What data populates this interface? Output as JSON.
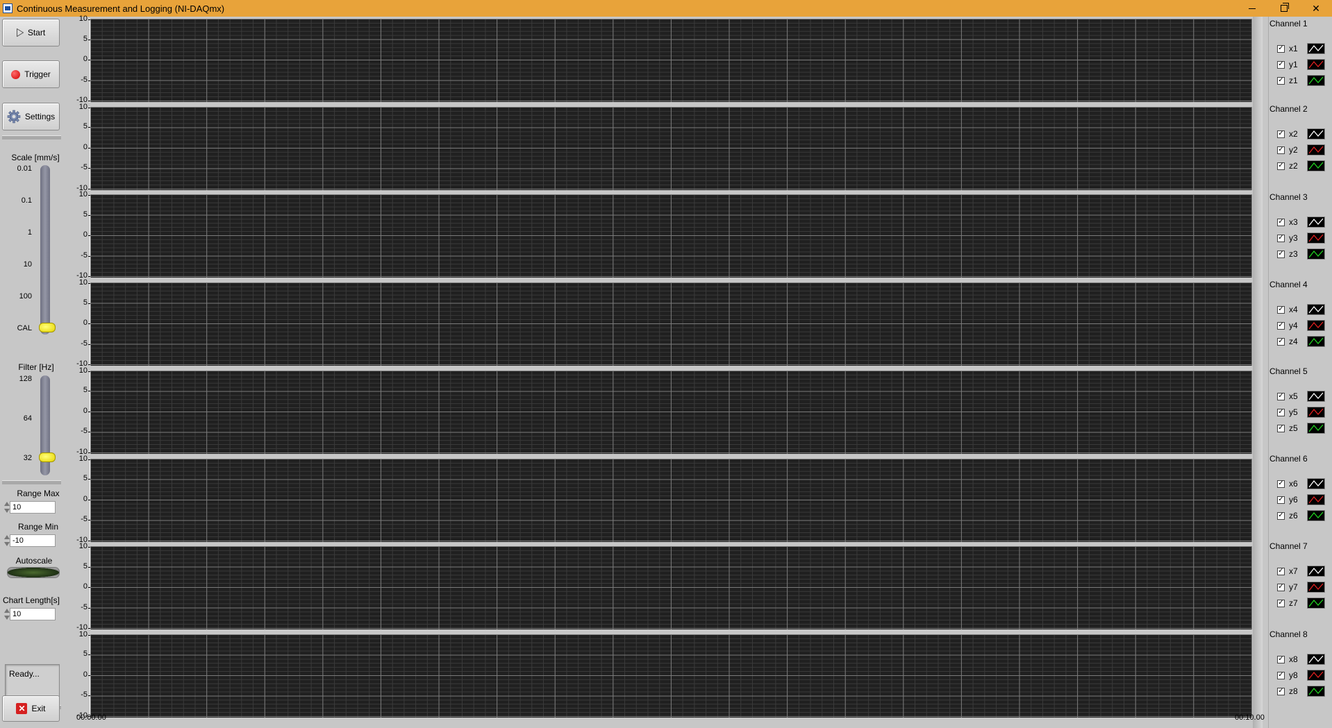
{
  "window": {
    "title": "Continuous Measurement and Logging (NI-DAQmx)"
  },
  "toolbar": {
    "start_label": "Start",
    "trigger_label": "Trigger",
    "settings_label": "Settings",
    "exit_label": "Exit"
  },
  "scale": {
    "label": "Scale [mm/s]",
    "ticks": [
      "0.01",
      "0.1",
      "1",
      "10",
      "100",
      "CAL"
    ],
    "selected": "CAL"
  },
  "filter": {
    "label": "Filter [Hz]",
    "ticks": [
      "128",
      "64",
      "32"
    ],
    "selected": "32"
  },
  "range_max": {
    "label": "Range Max",
    "value": "10"
  },
  "range_min": {
    "label": "Range Min",
    "value": "-10"
  },
  "autoscale": {
    "label": "Autoscale"
  },
  "chart_length": {
    "label": "Chart Length[s]",
    "value": "10"
  },
  "status": {
    "text": "Ready..."
  },
  "charts": {
    "y_ticks": [
      "10",
      "5",
      "0",
      "-5",
      "-10"
    ],
    "x_start": "00:00.00",
    "x_end": "00:10.00"
  },
  "channels": [
    {
      "title": "Channel 1",
      "legend": [
        "x1",
        "y1",
        "z1"
      ]
    },
    {
      "title": "Channel 2",
      "legend": [
        "x2",
        "y2",
        "z2"
      ]
    },
    {
      "title": "Channel 3",
      "legend": [
        "x3",
        "y3",
        "z3"
      ]
    },
    {
      "title": "Channel 4",
      "legend": [
        "x4",
        "y4",
        "z4"
      ]
    },
    {
      "title": "Channel 5",
      "legend": [
        "x5",
        "y5",
        "z5"
      ]
    },
    {
      "title": "Channel 6",
      "legend": [
        "x6",
        "y6",
        "z6"
      ]
    },
    {
      "title": "Channel 7",
      "legend": [
        "x7",
        "y7",
        "z7"
      ]
    },
    {
      "title": "Channel 8",
      "legend": [
        "x8",
        "y8",
        "z8"
      ]
    }
  ],
  "colors": {
    "x": "#ffffff",
    "y": "#e02020",
    "z": "#20d020",
    "titlebar": "#e8a33a"
  },
  "icons": [
    "play-icon",
    "record-icon",
    "gear-icon",
    "exit-icon"
  ]
}
